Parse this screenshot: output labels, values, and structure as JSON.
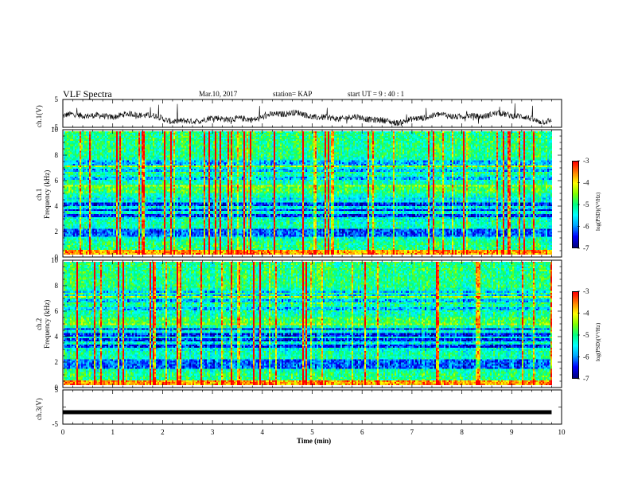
{
  "header": {
    "title": "VLF Spectra",
    "date": "Mar.10, 2017",
    "station": "station= KAP",
    "start_ut": "start  UT =   9 : 40 : 1"
  },
  "chart_data": [
    {
      "type": "line",
      "panel": "ch1_waveform",
      "ylabel": "ch.1(V)",
      "ylim": [
        -5,
        5
      ],
      "yticks": [
        "5",
        "-5"
      ],
      "x_unit": "min",
      "xlim": [
        0,
        10
      ],
      "description_series": "noisy voltage trace around -1 V"
    },
    {
      "type": "heatmap",
      "panel": "ch1_spectrogram",
      "ylabel": "ch.1\nFrequency (kHz)",
      "ylim": [
        0,
        10
      ],
      "yticks": [
        "0",
        "2",
        "4",
        "6",
        "8",
        "10"
      ],
      "xlim": [
        0,
        9.8
      ],
      "colorbar": {
        "label": "log(PSD)(V²/Hz)",
        "range": [
          -7,
          -3
        ],
        "ticks": [
          "-3",
          "-4",
          "-5",
          "-6",
          "-7"
        ]
      }
    },
    {
      "type": "heatmap",
      "panel": "ch2_spectrogram",
      "ylabel": "ch.2\nFrequency (kHz)",
      "ylim": [
        0,
        10
      ],
      "yticks": [
        "0",
        "2",
        "4",
        "6",
        "8",
        "10"
      ],
      "xlim": [
        0,
        9.8
      ],
      "colorbar": {
        "label": "log(PSD)(V²/Hz)",
        "range": [
          -7,
          -3
        ],
        "ticks": [
          "-3",
          "-4",
          "-5",
          "-6",
          "-7"
        ]
      }
    },
    {
      "type": "line",
      "panel": "ch3_waveform",
      "ylabel": "ch.3(V)",
      "ylim": [
        -5,
        5
      ],
      "yticks": [
        "5",
        "0",
        "-5"
      ],
      "xlim": [
        0,
        10
      ],
      "constant_value": -1.5
    }
  ],
  "xaxis": {
    "label": "Time  (min)",
    "ticks": [
      "0",
      "1",
      "2",
      "3",
      "4",
      "5",
      "6",
      "7",
      "8",
      "9",
      "10"
    ]
  },
  "colors": {
    "palette": [
      "#000080",
      "#0000ff",
      "#00a0ff",
      "#00ffff",
      "#00ff80",
      "#80ff00",
      "#ffff00",
      "#ff8000",
      "#ff0000"
    ]
  }
}
